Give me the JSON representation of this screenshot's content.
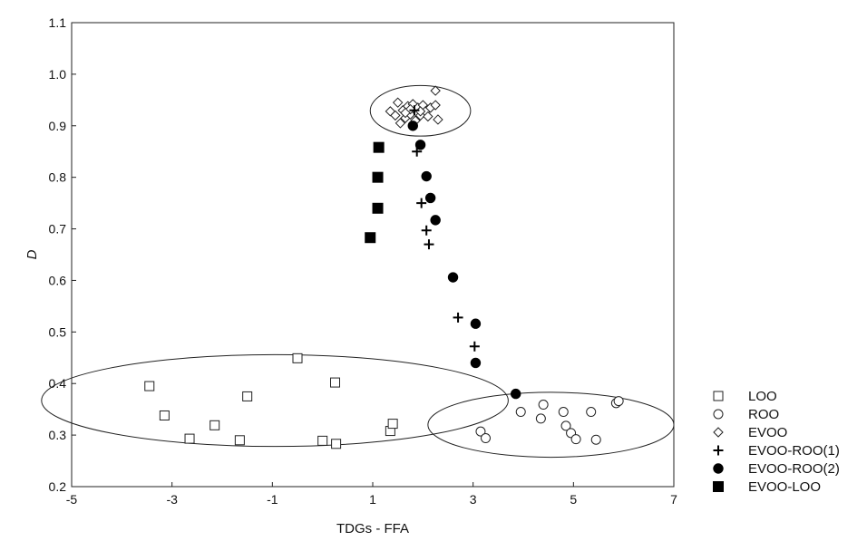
{
  "chart_data": {
    "type": "scatter",
    "title": "",
    "xlabel": "TDGs - FFA",
    "ylabel": "D",
    "xlim": [
      -5,
      7
    ],
    "ylim": [
      0.2,
      1.1
    ],
    "xticks": [
      -5,
      -3,
      -1,
      1,
      3,
      5,
      7
    ],
    "yticks": [
      0.2,
      0.3,
      0.4,
      0.5,
      0.6,
      0.7,
      0.8,
      0.9,
      1.0,
      1.1
    ],
    "xtick_labels": [
      "-5",
      "-3",
      "-1",
      "1",
      "3",
      "5",
      "7"
    ],
    "ytick_labels": [
      "0.2",
      "0.3",
      "0.4",
      "0.5",
      "0.6",
      "0.7",
      "0.8",
      "0.9",
      "1.0",
      "1.1"
    ],
    "grid": false,
    "legend_position": "right-bottom",
    "series": [
      {
        "name": "LOO",
        "marker": "open-square",
        "points": [
          [
            -3.45,
            0.395
          ],
          [
            -3.15,
            0.338
          ],
          [
            -2.65,
            0.293
          ],
          [
            -2.15,
            0.319
          ],
          [
            -1.65,
            0.29
          ],
          [
            -1.5,
            0.375
          ],
          [
            -0.5,
            0.449
          ],
          [
            0.25,
            0.402
          ],
          [
            0.0,
            0.289
          ],
          [
            0.27,
            0.283
          ],
          [
            1.35,
            0.308
          ],
          [
            1.4,
            0.322
          ]
        ]
      },
      {
        "name": "ROO",
        "marker": "open-circle",
        "points": [
          [
            3.15,
            0.307
          ],
          [
            3.25,
            0.294
          ],
          [
            3.95,
            0.345
          ],
          [
            4.35,
            0.332
          ],
          [
            4.4,
            0.359
          ],
          [
            4.8,
            0.345
          ],
          [
            4.85,
            0.318
          ],
          [
            4.95,
            0.304
          ],
          [
            5.05,
            0.292
          ],
          [
            5.35,
            0.345
          ],
          [
            5.45,
            0.291
          ],
          [
            5.85,
            0.362
          ],
          [
            5.9,
            0.366
          ]
        ]
      },
      {
        "name": "EVOO",
        "marker": "open-diamond",
        "points": [
          [
            1.35,
            0.928
          ],
          [
            1.45,
            0.92
          ],
          [
            1.5,
            0.945
          ],
          [
            1.55,
            0.905
          ],
          [
            1.6,
            0.93
          ],
          [
            1.65,
            0.915
          ],
          [
            1.7,
            0.938
          ],
          [
            1.75,
            0.922
          ],
          [
            1.8,
            0.942
          ],
          [
            1.85,
            0.91
          ],
          [
            1.9,
            0.935
          ],
          [
            1.95,
            0.92
          ],
          [
            2.0,
            0.94
          ],
          [
            2.05,
            0.928
          ],
          [
            2.1,
            0.918
          ],
          [
            2.15,
            0.935
          ],
          [
            2.25,
            0.94
          ],
          [
            2.3,
            0.912
          ],
          [
            2.25,
            0.968
          ],
          [
            1.75,
            0.932
          ],
          [
            1.95,
            0.928
          ],
          [
            1.65,
            0.925
          ]
        ]
      },
      {
        "name": "EVOO-ROO(1)",
        "marker": "plus",
        "points": [
          [
            1.83,
            0.93
          ],
          [
            1.88,
            0.85
          ],
          [
            1.97,
            0.75
          ],
          [
            2.07,
            0.697
          ],
          [
            2.12,
            0.67
          ],
          [
            2.7,
            0.528
          ],
          [
            3.03,
            0.472
          ]
        ]
      },
      {
        "name": "EVOO-ROO(2)",
        "marker": "filled-circle",
        "points": [
          [
            1.8,
            0.9
          ],
          [
            1.95,
            0.863
          ],
          [
            2.07,
            0.802
          ],
          [
            2.15,
            0.76
          ],
          [
            2.25,
            0.717
          ],
          [
            2.6,
            0.606
          ],
          [
            3.05,
            0.516
          ],
          [
            3.05,
            0.44
          ],
          [
            3.85,
            0.38
          ]
        ]
      },
      {
        "name": "EVOO-LOO",
        "marker": "filled-square",
        "points": [
          [
            0.95,
            0.683
          ],
          [
            1.1,
            0.74
          ],
          [
            1.1,
            0.8
          ],
          [
            1.12,
            0.858
          ]
        ]
      }
    ],
    "ellipses": [
      {
        "cx": -0.95,
        "cy": 0.367,
        "rx": 4.65,
        "ry": 0.089
      },
      {
        "cx": 4.55,
        "cy": 0.32,
        "rx": 2.45,
        "ry": 0.063
      },
      {
        "cx": 1.95,
        "cy": 0.929,
        "rx": 1.0,
        "ry": 0.049
      }
    ]
  }
}
